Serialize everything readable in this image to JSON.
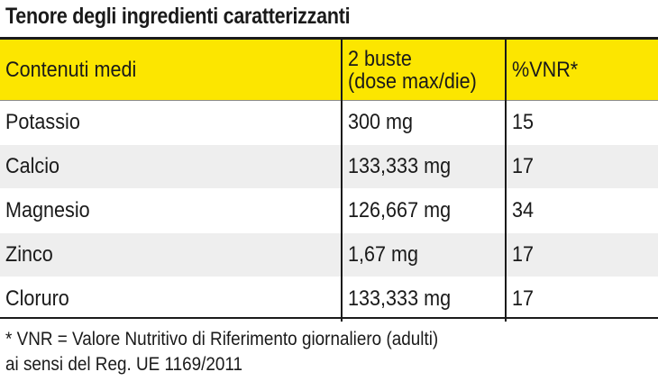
{
  "title": "Tenore degli ingredienti caratterizzanti",
  "table": {
    "headers": {
      "col1": "Contenuti medi",
      "col2_line1": "2 buste",
      "col2_line2": "(dose max/die)",
      "col3": "%VNR*"
    },
    "rows": [
      {
        "name": "Potassio",
        "amount": "300 mg",
        "vnr": "15"
      },
      {
        "name": "Calcio",
        "amount": "133,333 mg",
        "vnr": "17"
      },
      {
        "name": "Magnesio",
        "amount": "126,667 mg",
        "vnr": "34"
      },
      {
        "name": "Zinco",
        "amount": "1,67 mg",
        "vnr": "17"
      },
      {
        "name": "Cloruro",
        "amount": "133,333 mg",
        "vnr": "17"
      }
    ]
  },
  "footnote": {
    "line1": "* VNR = Valore Nutritivo di Riferimento giornaliero (adulti)",
    "line2": "ai sensi del Reg. UE 1169/2011"
  },
  "colors": {
    "header_background": "#fce600",
    "alternate_row": "#eeeeee",
    "rules": "#1a1a1a"
  }
}
